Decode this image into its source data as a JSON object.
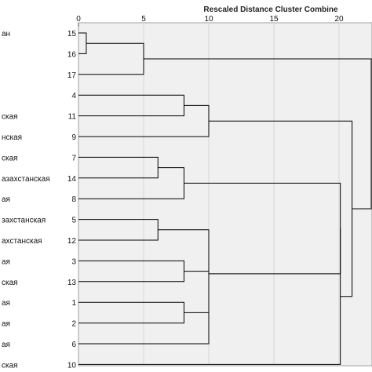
{
  "chart_data": {
    "type": "dendrogram",
    "title": "Rescaled Distance Cluster Combine",
    "x_ticks": [
      0,
      5,
      10,
      15,
      20
    ],
    "xlim": [
      0,
      25
    ],
    "leaves": [
      {
        "id": 15,
        "label": "ан"
      },
      {
        "id": 16,
        "label": ""
      },
      {
        "id": 17,
        "label": ""
      },
      {
        "id": 4,
        "label": ""
      },
      {
        "id": 11,
        "label": "ская"
      },
      {
        "id": 9,
        "label": "нская"
      },
      {
        "id": 7,
        "label": "ская"
      },
      {
        "id": 14,
        "label": "азахстанская"
      },
      {
        "id": 8,
        "label": "ая"
      },
      {
        "id": 5,
        "label": "захстанская"
      },
      {
        "id": 12,
        "label": "ахстанская"
      },
      {
        "id": 3,
        "label": "ая"
      },
      {
        "id": 13,
        "label": "ская"
      },
      {
        "id": 1,
        "label": "ая"
      },
      {
        "id": 2,
        "label": "ая"
      },
      {
        "id": 6,
        "label": "ая"
      },
      {
        "id": 10,
        "label": "ская"
      }
    ],
    "merges": [
      {
        "children": [
          "L0",
          "L1"
        ],
        "distance": 0.6
      },
      {
        "children": [
          "M0",
          "L2"
        ],
        "distance": 5.0
      },
      {
        "children": [
          "L3",
          "L4"
        ],
        "distance": 8.1
      },
      {
        "children": [
          "M2",
          "L5"
        ],
        "distance": 10.0
      },
      {
        "children": [
          "L6",
          "L7"
        ],
        "distance": 6.1
      },
      {
        "children": [
          "M4",
          "L8"
        ],
        "distance": 8.1
      },
      {
        "children": [
          "L9",
          "L10"
        ],
        "distance": 6.1
      },
      {
        "children": [
          "L11",
          "L12"
        ],
        "distance": 8.1
      },
      {
        "children": [
          "L13",
          "L14"
        ],
        "distance": 8.1
      },
      {
        "children": [
          "M7",
          "M8"
        ],
        "distance": 10.0
      },
      {
        "children": [
          "M9",
          "L15"
        ],
        "distance": 10.0
      },
      {
        "children": [
          "M6",
          "M10"
        ],
        "distance": 10.0
      },
      {
        "children": [
          "M5",
          "M11"
        ],
        "distance": 20.1
      },
      {
        "children": [
          "M12",
          "L16"
        ],
        "distance": 20.1
      },
      {
        "children": [
          "M3",
          "M13"
        ],
        "distance": 21.0
      },
      {
        "children": [
          "M1",
          "M14"
        ],
        "distance": 25.0
      }
    ],
    "colors": {
      "line": "#000000",
      "panel": "#f0f0f0",
      "grid": "#a0a0a0"
    }
  }
}
